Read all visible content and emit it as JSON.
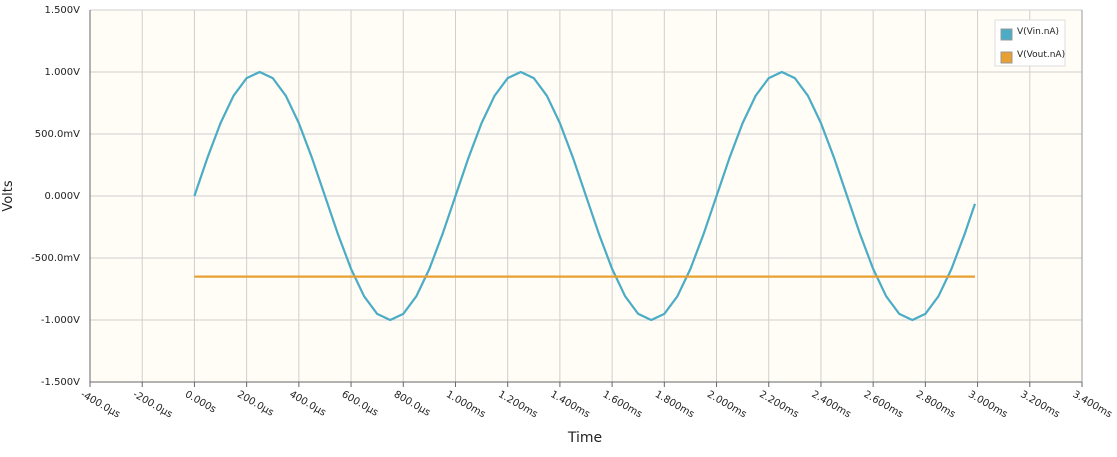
{
  "chart_data": {
    "type": "line",
    "xlabel": "Time",
    "ylabel": "Volts",
    "xlim": [
      -0.0004,
      0.0034
    ],
    "xticks": [
      {
        "value": -0.0004,
        "label": "-400.0µs"
      },
      {
        "value": -0.0002,
        "label": "-200.0µs"
      },
      {
        "value": 0,
        "label": "0.000s"
      },
      {
        "value": 0.0002,
        "label": "200.0µs"
      },
      {
        "value": 0.0004,
        "label": "400.0µs"
      },
      {
        "value": 0.0006,
        "label": "600.0µs"
      },
      {
        "value": 0.0008,
        "label": "800.0µs"
      },
      {
        "value": 0.001,
        "label": "1.000ms"
      },
      {
        "value": 0.0012,
        "label": "1.200ms"
      },
      {
        "value": 0.0014,
        "label": "1.400ms"
      },
      {
        "value": 0.0016,
        "label": "1.600ms"
      },
      {
        "value": 0.0018,
        "label": "1.800ms"
      },
      {
        "value": 0.002,
        "label": "2.000ms"
      },
      {
        "value": 0.0022,
        "label": "2.200ms"
      },
      {
        "value": 0.0024,
        "label": "2.400ms"
      },
      {
        "value": 0.0026,
        "label": "2.600ms"
      },
      {
        "value": 0.0028,
        "label": "2.800ms"
      },
      {
        "value": 0.003,
        "label": "3.000ms"
      },
      {
        "value": 0.0032,
        "label": "3.200ms"
      },
      {
        "value": 0.0034,
        "label": "3.400ms"
      }
    ],
    "ylim": [
      -1.5,
      1.5
    ],
    "yticks": [
      {
        "value": 1.5,
        "label": "1.500V"
      },
      {
        "value": 1,
        "label": "1.000V"
      },
      {
        "value": 0.5,
        "label": "500.0mV"
      },
      {
        "value": 0,
        "label": "0.000V"
      },
      {
        "value": -0.5,
        "label": "-500.0mV"
      },
      {
        "value": -1,
        "label": "-1.000V"
      },
      {
        "value": -1.5,
        "label": "-1.500V"
      }
    ],
    "grid": true,
    "legend": "upper right",
    "series": [
      {
        "name": "V(Vin.nA)",
        "color": "#4bacc6",
        "x": [
          0,
          5e-05,
          0.0001,
          0.00015,
          0.0002,
          0.00025,
          0.0003,
          0.00035,
          0.0004,
          0.00045,
          0.0005,
          0.00055,
          0.0006,
          0.00065,
          0.0007,
          0.00075,
          0.0008,
          0.00085,
          0.0009,
          0.00095,
          0.001,
          0.00105,
          0.0011,
          0.00115,
          0.0012,
          0.00125,
          0.0013,
          0.00135,
          0.0014,
          0.00145,
          0.0015,
          0.00155,
          0.0016,
          0.00165,
          0.0017,
          0.00175,
          0.0018,
          0.00185,
          0.0019,
          0.00195,
          0.002,
          0.00205,
          0.0021,
          0.00215,
          0.0022,
          0.00225,
          0.0023,
          0.00235,
          0.0024,
          0.00245,
          0.0025,
          0.00255,
          0.0026,
          0.00265,
          0.0027,
          0.00275,
          0.0028,
          0.00285,
          0.0029,
          0.00295,
          0.00299
        ],
        "values": [
          0,
          0.309,
          0.588,
          0.809,
          0.951,
          1,
          0.951,
          0.809,
          0.588,
          0.309,
          0,
          -0.309,
          -0.588,
          -0.809,
          -0.951,
          -1,
          -0.951,
          -0.809,
          -0.588,
          -0.309,
          0,
          0.309,
          0.588,
          0.809,
          0.951,
          1,
          0.951,
          0.809,
          0.588,
          0.309,
          0,
          -0.309,
          -0.588,
          -0.809,
          -0.951,
          -1,
          -0.951,
          -0.809,
          -0.588,
          -0.309,
          0,
          0.309,
          0.588,
          0.809,
          0.951,
          1,
          0.951,
          0.809,
          0.588,
          0.309,
          0,
          -0.309,
          -0.588,
          -0.809,
          -0.951,
          -1,
          -0.951,
          -0.809,
          -0.588,
          -0.309,
          -0.063
        ]
      },
      {
        "name": "V(Vout.nA)",
        "color": "#e8a030",
        "x": [
          0,
          0.00299
        ],
        "values": [
          -0.65,
          -0.65
        ]
      }
    ]
  }
}
